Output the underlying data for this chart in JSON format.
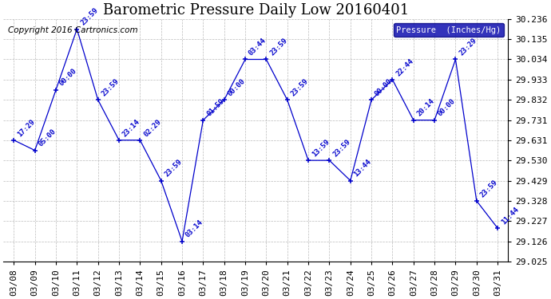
{
  "title": "Barometric Pressure Daily Low 20160401",
  "copyright": "Copyright 2016 Cartronics.com",
  "legend_label": "Pressure  (Inches/Hg)",
  "dates": [
    "03/08",
    "03/09",
    "03/10",
    "03/11",
    "03/12",
    "03/13",
    "03/14",
    "03/15",
    "03/16",
    "03/17",
    "03/18",
    "03/19",
    "03/20",
    "03/21",
    "03/22",
    "03/23",
    "03/24",
    "03/25",
    "03/26",
    "03/27",
    "03/28",
    "03/29",
    "03/30",
    "03/31"
  ],
  "values": [
    29.631,
    29.58,
    29.882,
    30.185,
    29.832,
    29.631,
    29.631,
    29.429,
    29.126,
    29.731,
    29.832,
    30.034,
    30.034,
    29.832,
    29.53,
    29.53,
    29.429,
    29.832,
    29.933,
    29.731,
    29.731,
    30.034,
    29.328,
    29.192
  ],
  "annotations": [
    "17:29",
    "05:00",
    "00:00",
    "23:59",
    "23:59",
    "23:14",
    "02:29",
    "23:59",
    "03:14",
    "01:59",
    "00:00",
    "03:44",
    "23:59",
    "23:59",
    "13:59",
    "23:59",
    "13:44",
    "00:00",
    "22:44",
    "20:14",
    "00:00",
    "23:29",
    "23:59",
    "11:44"
  ],
  "ylim_min": 29.025,
  "ylim_max": 30.236,
  "yticks": [
    29.025,
    29.126,
    29.227,
    29.328,
    29.429,
    29.53,
    29.631,
    29.731,
    29.832,
    29.933,
    30.034,
    30.135,
    30.236
  ],
  "line_color": "#0000cc",
  "annotation_color": "#0000cc",
  "grid_color": "#aaaaaa",
  "background_color": "#ffffff",
  "legend_bg": "#0000aa",
  "legend_fg": "#ffffff",
  "title_fontsize": 13,
  "copyright_fontsize": 7.5,
  "annotation_fontsize": 6.5,
  "tick_fontsize": 8
}
